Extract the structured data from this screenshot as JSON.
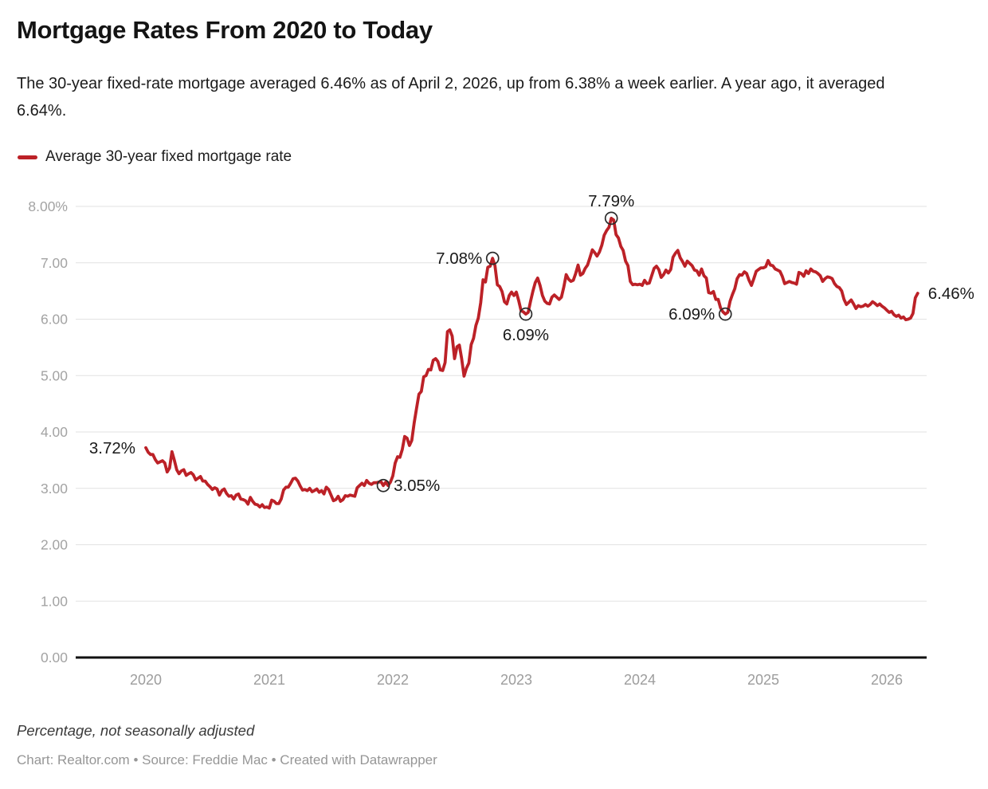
{
  "header": {
    "title": "Mortgage Rates From 2020 to Today",
    "subtitle": "The 30-year fixed-rate mortgage averaged 6.46% as of April 2, 2026, up from 6.38% a week earlier. A year ago, it averaged 6.64%."
  },
  "legend": {
    "label": "Average 30-year fixed mortgage rate",
    "color": "#bc2127"
  },
  "chart_data": {
    "type": "line",
    "title": "Mortgage Rates From 2020 to Today",
    "unit": "percent",
    "line_color": "#bc2127",
    "grid": "horizontal",
    "legend_position": "top-left",
    "ylim": [
      0,
      8
    ],
    "x_range": [
      2020.0,
      2026.25
    ],
    "y_axis": {
      "ticks": [
        {
          "label": "8.00%",
          "value": 8
        },
        {
          "label": "7.00",
          "value": 7
        },
        {
          "label": "6.00",
          "value": 6
        },
        {
          "label": "5.00",
          "value": 5
        },
        {
          "label": "4.00",
          "value": 4
        },
        {
          "label": "3.00",
          "value": 3
        },
        {
          "label": "2.00",
          "value": 2
        },
        {
          "label": "1.00",
          "value": 1
        },
        {
          "label": "0.00",
          "value": 0
        }
      ]
    },
    "x_axis": {
      "ticks": [
        2020,
        2021,
        2022,
        2023,
        2024,
        2025,
        2026
      ]
    },
    "series": [
      {
        "name": "Average 30-year fixed mortgage rate",
        "weekly_by_year": {
          "2020": [
            3.72,
            3.64,
            3.6,
            3.6,
            3.51,
            3.45,
            3.47,
            3.49,
            3.45,
            3.29,
            3.36,
            3.65,
            3.5,
            3.33,
            3.26,
            3.31,
            3.33,
            3.23,
            3.26,
            3.28,
            3.24,
            3.15,
            3.18,
            3.21,
            3.13,
            3.13,
            3.07,
            3.03,
            2.98,
            3.01,
            2.99,
            2.88,
            2.96,
            2.99,
            2.91,
            2.86,
            2.87,
            2.81,
            2.88,
            2.9,
            2.81,
            2.8,
            2.78,
            2.72,
            2.84,
            2.77,
            2.72,
            2.71,
            2.67,
            2.71,
            2.66,
            2.67
          ],
          "2021": [
            2.65,
            2.79,
            2.77,
            2.73,
            2.73,
            2.81,
            2.97,
            3.02,
            3.02,
            3.09,
            3.17,
            3.18,
            3.13,
            3.04,
            2.97,
            2.98,
            2.96,
            3.0,
            2.94,
            2.96,
            2.99,
            2.93,
            2.96,
            2.9,
            3.02,
            2.98,
            2.88,
            2.78,
            2.8,
            2.86,
            2.77,
            2.8,
            2.87,
            2.86,
            2.88,
            2.87,
            2.86,
            3.01,
            3.05,
            3.09,
            3.05,
            3.14,
            3.09,
            3.07,
            3.1,
            3.1,
            3.11,
            3.12,
            3.05,
            3.11,
            3.05,
            3.11
          ],
          "2022": [
            3.22,
            3.45,
            3.56,
            3.55,
            3.69,
            3.92,
            3.89,
            3.76,
            3.85,
            4.16,
            4.42,
            4.67,
            4.72,
            4.98,
            5.0,
            5.11,
            5.1,
            5.27,
            5.3,
            5.25,
            5.1,
            5.09,
            5.23,
            5.78,
            5.81,
            5.7,
            5.3,
            5.51,
            5.54,
            5.3,
            4.99,
            5.13,
            5.22,
            5.55,
            5.66,
            5.89,
            6.02,
            6.29,
            6.7,
            6.66,
            6.92,
            6.94,
            7.08,
            6.95,
            6.61,
            6.58,
            6.49,
            6.31,
            6.27,
            6.42,
            6.48,
            6.42
          ],
          "2023": [
            6.48,
            6.33,
            6.15,
            6.13,
            6.09,
            6.12,
            6.32,
            6.5,
            6.65,
            6.73,
            6.6,
            6.42,
            6.32,
            6.28,
            6.27,
            6.39,
            6.43,
            6.39,
            6.35,
            6.39,
            6.57,
            6.79,
            6.71,
            6.67,
            6.69,
            6.81,
            6.96,
            6.78,
            6.81,
            6.9,
            6.96,
            7.09,
            7.23,
            7.18,
            7.12,
            7.19,
            7.31,
            7.49,
            7.57,
            7.63,
            7.79,
            7.76,
            7.5,
            7.44,
            7.29,
            7.22,
            7.03,
            6.95,
            6.67,
            6.61,
            6.62,
            6.61
          ],
          "2024": [
            6.62,
            6.6,
            6.69,
            6.63,
            6.64,
            6.77,
            6.9,
            6.94,
            6.88,
            6.74,
            6.79,
            6.87,
            6.82,
            6.88,
            7.1,
            7.17,
            7.22,
            7.09,
            7.02,
            6.94,
            7.03,
            6.99,
            6.95,
            6.87,
            6.86,
            6.78,
            6.89,
            6.77,
            6.73,
            6.47,
            6.46,
            6.49,
            6.35,
            6.35,
            6.2,
            6.13,
            6.09,
            6.12,
            6.32,
            6.44,
            6.54,
            6.72,
            6.79,
            6.78,
            6.84,
            6.81,
            6.69,
            6.6,
            6.72,
            6.85,
            6.88,
            6.91
          ],
          "2025": [
            6.91,
            6.93,
            7.04,
            6.96,
            6.95,
            6.89,
            6.87,
            6.85,
            6.76,
            6.63,
            6.65,
            6.67,
            6.65,
            6.64,
            6.62,
            6.83,
            6.81,
            6.76,
            6.86,
            6.81,
            6.89,
            6.85,
            6.84,
            6.81,
            6.77,
            6.67,
            6.72,
            6.75,
            6.74,
            6.72,
            6.63,
            6.58,
            6.56,
            6.5,
            6.35,
            6.26,
            6.3,
            6.34,
            6.27,
            6.19,
            6.24,
            6.22,
            6.23,
            6.26,
            6.23,
            6.26,
            6.31,
            6.28,
            6.24,
            6.27,
            6.23,
            6.2
          ],
          "2026": [
            6.16,
            6.12,
            6.14,
            6.08,
            6.05,
            6.07,
            6.02,
            6.04,
            5.99,
            6.0,
            6.02,
            6.1,
            6.38,
            6.46
          ]
        }
      }
    ],
    "annotations": [
      {
        "label": "3.72%",
        "t": 2020.0,
        "value": 3.72,
        "placement": "left",
        "marker": false
      },
      {
        "label": "3.05%",
        "t": 2021.923,
        "value": 3.05,
        "placement": "right",
        "marker": true
      },
      {
        "label": "7.08%",
        "t": 2022.808,
        "value": 7.08,
        "placement": "left",
        "marker": true
      },
      {
        "label": "6.09%",
        "t": 2023.077,
        "value": 6.09,
        "placement": "below",
        "marker": true
      },
      {
        "label": "7.79%",
        "t": 2023.769,
        "value": 7.79,
        "placement": "above",
        "marker": true
      },
      {
        "label": "6.09%",
        "t": 2024.692,
        "value": 6.09,
        "placement": "left",
        "marker": true
      },
      {
        "label": "6.46%",
        "t": 2026.25,
        "value": 6.46,
        "placement": "right",
        "marker": false
      }
    ]
  },
  "footer": {
    "note": "Percentage, not seasonally adjusted",
    "credits": "Chart: Realtor.com • Source: Freddie Mac • Created with Datawrapper"
  }
}
